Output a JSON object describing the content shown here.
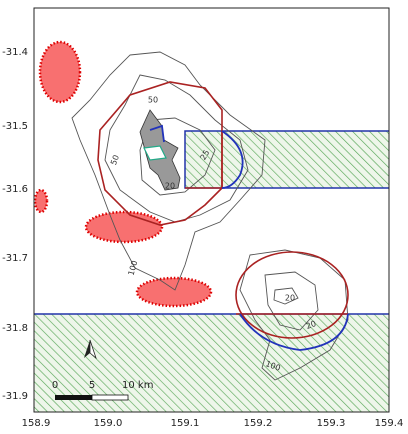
{
  "map": {
    "yticks": [
      "-31.4",
      "-31.5",
      "-31.6",
      "-31.7",
      "-31.8",
      "-31.9"
    ],
    "xticks": [
      "158.9",
      "159.0",
      "159.1",
      "159.2",
      "159.3",
      "159.4"
    ],
    "contour_labels": [
      "50",
      "50",
      "100",
      "25",
      "20",
      "20",
      "20",
      "100"
    ],
    "scale_bar": [
      "0",
      "5",
      "10 km"
    ]
  }
}
